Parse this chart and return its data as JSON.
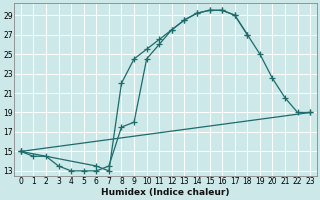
{
  "xlabel": "Humidex (Indice chaleur)",
  "bg_color": "#cce8e8",
  "grid_color": "#ffffff",
  "line_color": "#1e6b6b",
  "marker": "+",
  "xlim": [
    -0.5,
    23.5
  ],
  "ylim": [
    12.5,
    30.2
  ],
  "xticks": [
    0,
    1,
    2,
    3,
    4,
    5,
    6,
    7,
    8,
    9,
    10,
    11,
    12,
    13,
    14,
    15,
    16,
    17,
    18,
    19,
    20,
    21,
    22,
    23
  ],
  "yticks": [
    13,
    15,
    17,
    19,
    21,
    23,
    25,
    27,
    29
  ],
  "curve1_x": [
    0,
    1,
    2,
    3,
    4,
    5,
    6,
    7,
    8,
    9,
    10,
    11,
    12,
    13,
    14,
    15,
    16,
    17,
    18
  ],
  "curve1_y": [
    15,
    14.5,
    14.5,
    13.5,
    13,
    13,
    13,
    13.5,
    17.5,
    18,
    24.5,
    26,
    27.5,
    28.5,
    29.2,
    29.5,
    29.5,
    29,
    27
  ],
  "curve2_x": [
    0,
    6,
    7,
    8,
    9,
    10,
    11,
    12,
    13,
    14,
    15,
    16,
    17,
    18,
    19,
    20,
    21,
    22,
    23
  ],
  "curve2_y": [
    15,
    13.5,
    13,
    22,
    24.5,
    25.5,
    26.5,
    27.5,
    28.5,
    29.2,
    29.5,
    29.5,
    29,
    27,
    25,
    22.5,
    20.5,
    19,
    19
  ],
  "curve3_x": [
    0,
    23
  ],
  "curve3_y": [
    15,
    19
  ],
  "tick_fontsize": 5.5,
  "xlabel_fontsize": 6.5
}
